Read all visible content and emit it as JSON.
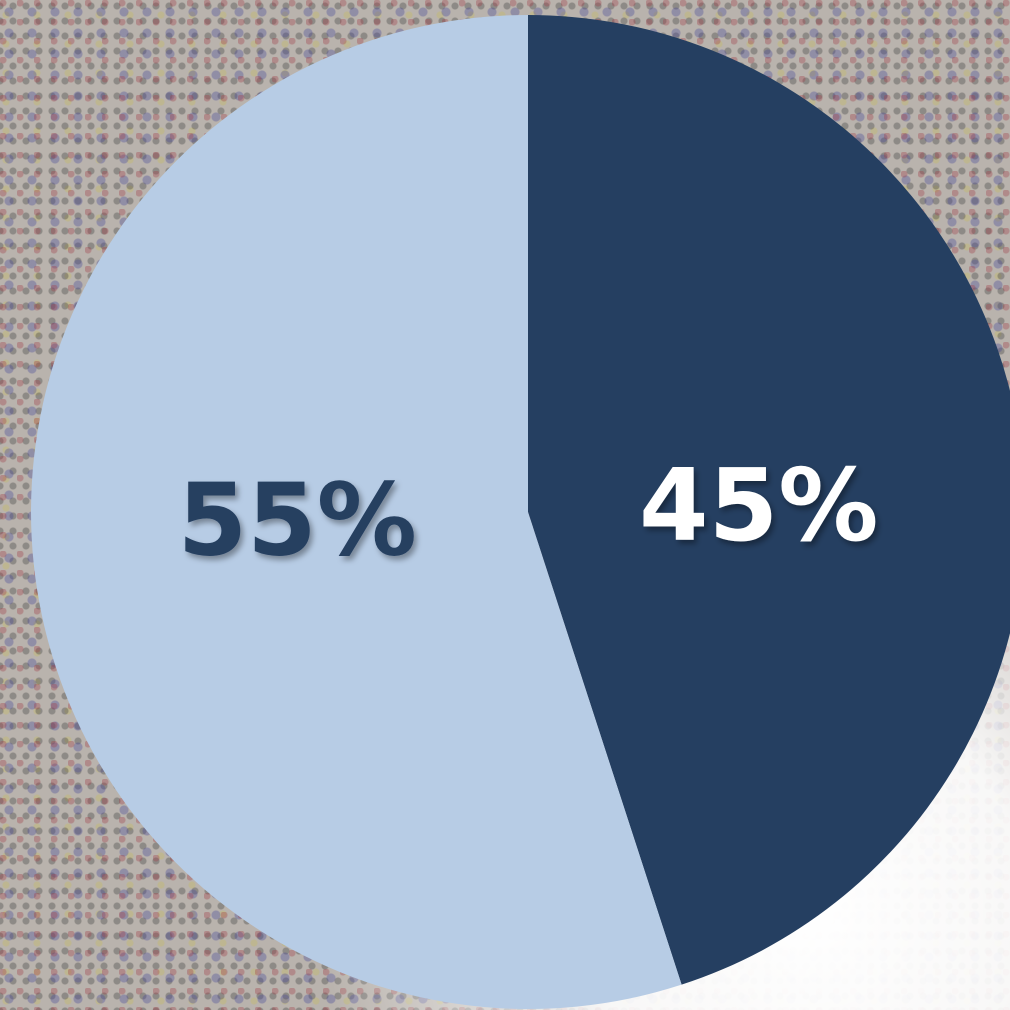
{
  "chart_data": {
    "type": "pie",
    "values": [
      45,
      55
    ],
    "value_labels": [
      "45%",
      "55%"
    ],
    "colors": [
      "#253f61",
      "#b7cce5"
    ],
    "label_colors": [
      "#ffffff",
      "#253f61"
    ]
  }
}
